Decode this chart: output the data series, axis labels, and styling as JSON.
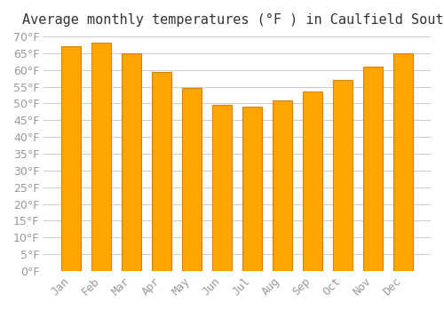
{
  "title": "Average monthly temperatures (°F ) in Caulfield South",
  "months": [
    "Jan",
    "Feb",
    "Mar",
    "Apr",
    "May",
    "Jun",
    "Jul",
    "Aug",
    "Sep",
    "Oct",
    "Nov",
    "Dec"
  ],
  "values": [
    67,
    68,
    65,
    59.5,
    54.5,
    49.5,
    49,
    51,
    53.5,
    57,
    61,
    65
  ],
  "bar_color": "#FFA500",
  "bar_edge_color": "#E08000",
  "ylim": [
    0,
    70
  ],
  "yticks": [
    0,
    5,
    10,
    15,
    20,
    25,
    30,
    35,
    40,
    45,
    50,
    55,
    60,
    65,
    70
  ],
  "background_color": "#FFFFFF",
  "grid_color": "#CCCCCC",
  "title_fontsize": 11,
  "tick_fontsize": 9,
  "tick_color": "#999999"
}
